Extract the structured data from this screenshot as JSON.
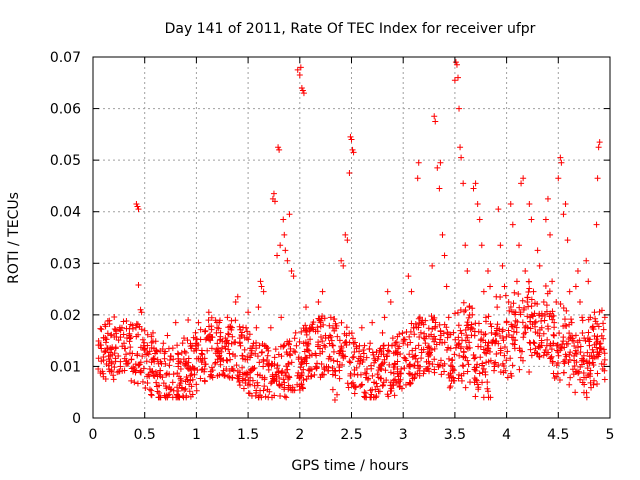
{
  "chart_data": {
    "type": "scatter",
    "title": "Day 141 of 2011, Rate Of TEC Index for receiver ufpr",
    "xlabel": "GPS time / hours",
    "ylabel": "ROTI / TECUs",
    "xlim": [
      0,
      5
    ],
    "ylim": [
      0,
      0.07
    ],
    "x_ticks": [
      "0",
      "0.5",
      "1",
      "1.5",
      "2",
      "2.5",
      "3",
      "3.5",
      "4",
      "4.5",
      "5"
    ],
    "y_ticks": [
      "0",
      "0.01",
      "0.02",
      "0.03",
      "0.04",
      "0.05",
      "0.06",
      "0.07"
    ],
    "grid": true,
    "marker": "plus",
    "color": "#ff0000",
    "series": [
      {
        "name": "ROTI",
        "points": [
          [
            0.05,
            0.0095
          ],
          [
            0.08,
            0.011
          ],
          [
            0.1,
            0.008
          ],
          [
            0.12,
            0.013
          ],
          [
            0.15,
            0.012
          ],
          [
            0.18,
            0.0105
          ],
          [
            0.2,
            0.0075
          ],
          [
            0.22,
            0.0135
          ],
          [
            0.25,
            0.009
          ],
          [
            0.28,
            0.0175
          ],
          [
            0.3,
            0.0145
          ],
          [
            0.32,
            0.011
          ],
          [
            0.35,
            0.016
          ],
          [
            0.38,
            0.0125
          ],
          [
            0.4,
            0.0095
          ],
          [
            0.42,
            0.0415
          ],
          [
            0.43,
            0.041
          ],
          [
            0.44,
            0.0405
          ],
          [
            0.44,
            0.0258
          ],
          [
            0.46,
            0.021
          ],
          [
            0.47,
            0.0205
          ],
          [
            0.5,
            0.0135
          ],
          [
            0.52,
            0.011
          ],
          [
            0.55,
            0.0095
          ],
          [
            0.58,
            0.0165
          ],
          [
            0.6,
            0.0125
          ],
          [
            0.62,
            0.0085
          ],
          [
            0.65,
            0.013
          ],
          [
            0.68,
            0.0145
          ],
          [
            0.7,
            0.0105
          ],
          [
            0.72,
            0.016
          ],
          [
            0.75,
            0.012
          ],
          [
            0.78,
            0.0085
          ],
          [
            0.8,
            0.0185
          ],
          [
            0.82,
            0.0125
          ],
          [
            0.85,
            0.0095
          ],
          [
            0.88,
            0.0155
          ],
          [
            0.9,
            0.011
          ],
          [
            0.92,
            0.019
          ],
          [
            0.95,
            0.0135
          ],
          [
            0.98,
            0.0095
          ],
          [
            1.0,
            0.0145
          ],
          [
            1.02,
            0.0185
          ],
          [
            1.05,
            0.0125
          ],
          [
            1.08,
            0.0095
          ],
          [
            1.1,
            0.0155
          ],
          [
            1.12,
            0.0205
          ],
          [
            1.15,
            0.0135
          ],
          [
            1.18,
            0.0105
          ],
          [
            1.2,
            0.0175
          ],
          [
            1.22,
            0.0125
          ],
          [
            1.25,
            0.0085
          ],
          [
            1.28,
            0.0155
          ],
          [
            1.3,
            0.0195
          ],
          [
            1.32,
            0.0125
          ],
          [
            1.35,
            0.0095
          ],
          [
            1.38,
            0.0225
          ],
          [
            1.4,
            0.0235
          ],
          [
            1.42,
            0.0145
          ],
          [
            1.45,
            0.0115
          ],
          [
            1.48,
            0.0175
          ],
          [
            1.5,
            0.0205
          ],
          [
            1.52,
            0.0135
          ],
          [
            1.55,
            0.0095
          ],
          [
            1.58,
            0.0175
          ],
          [
            1.6,
            0.0215
          ],
          [
            1.62,
            0.0265
          ],
          [
            1.63,
            0.0255
          ],
          [
            1.65,
            0.0245
          ],
          [
            1.68,
            0.0135
          ],
          [
            1.7,
            0.0105
          ],
          [
            1.72,
            0.0175
          ],
          [
            1.74,
            0.0425
          ],
          [
            1.75,
            0.0435
          ],
          [
            1.76,
            0.042
          ],
          [
            1.78,
            0.0315
          ],
          [
            1.79,
            0.0525
          ],
          [
            1.8,
            0.052
          ],
          [
            1.81,
            0.0335
          ],
          [
            1.82,
            0.0195
          ],
          [
            1.84,
            0.0385
          ],
          [
            1.85,
            0.0355
          ],
          [
            1.86,
            0.0325
          ],
          [
            1.88,
            0.0305
          ],
          [
            1.9,
            0.0395
          ],
          [
            1.92,
            0.0285
          ],
          [
            1.94,
            0.0275
          ],
          [
            1.96,
            0.0165
          ],
          [
            1.98,
            0.0675
          ],
          [
            2.0,
            0.0665
          ],
          [
            2.01,
            0.068
          ],
          [
            2.02,
            0.064
          ],
          [
            2.03,
            0.0635
          ],
          [
            2.04,
            0.063
          ],
          [
            2.06,
            0.0215
          ],
          [
            2.08,
            0.0145
          ],
          [
            2.1,
            0.0095
          ],
          [
            2.12,
            0.0175
          ],
          [
            2.15,
            0.0125
          ],
          [
            2.18,
            0.0225
          ],
          [
            2.2,
            0.0185
          ],
          [
            2.22,
            0.0245
          ],
          [
            2.25,
            0.0155
          ],
          [
            2.28,
            0.0115
          ],
          [
            2.3,
            0.0195
          ],
          [
            2.32,
            0.0055
          ],
          [
            2.34,
            0.0035
          ],
          [
            2.36,
            0.0045
          ],
          [
            2.38,
            0.0125
          ],
          [
            2.4,
            0.0305
          ],
          [
            2.42,
            0.0295
          ],
          [
            2.44,
            0.0355
          ],
          [
            2.46,
            0.0345
          ],
          [
            2.48,
            0.0475
          ],
          [
            2.49,
            0.0545
          ],
          [
            2.5,
            0.054
          ],
          [
            2.51,
            0.052
          ],
          [
            2.52,
            0.0515
          ],
          [
            2.55,
            0.0135
          ],
          [
            2.58,
            0.0105
          ],
          [
            2.6,
            0.0175
          ],
          [
            2.62,
            0.0125
          ],
          [
            2.65,
            0.0095
          ],
          [
            2.68,
            0.0145
          ],
          [
            2.7,
            0.0185
          ],
          [
            2.72,
            0.0115
          ],
          [
            2.75,
            0.0085
          ],
          [
            2.78,
            0.0135
          ],
          [
            2.8,
            0.0165
          ],
          [
            2.82,
            0.0195
          ],
          [
            2.85,
            0.0245
          ],
          [
            2.88,
            0.0225
          ],
          [
            2.9,
            0.0155
          ],
          [
            2.92,
            0.0105
          ],
          [
            2.95,
            0.0135
          ],
          [
            2.98,
            0.0095
          ],
          [
            3.0,
            0.0145
          ],
          [
            3.02,
            0.0115
          ],
          [
            3.05,
            0.0275
          ],
          [
            3.08,
            0.0245
          ],
          [
            3.1,
            0.0175
          ],
          [
            3.12,
            0.0135
          ],
          [
            3.14,
            0.0465
          ],
          [
            3.15,
            0.0495
          ],
          [
            3.18,
            0.0185
          ],
          [
            3.2,
            0.0155
          ],
          [
            3.22,
            0.0095
          ],
          [
            3.25,
            0.0125
          ],
          [
            3.28,
            0.0295
          ],
          [
            3.3,
            0.0585
          ],
          [
            3.31,
            0.0575
          ],
          [
            3.33,
            0.0485
          ],
          [
            3.35,
            0.0445
          ],
          [
            3.36,
            0.0495
          ],
          [
            3.38,
            0.0355
          ],
          [
            3.4,
            0.0315
          ],
          [
            3.42,
            0.0255
          ],
          [
            3.44,
            0.0195
          ],
          [
            3.46,
            0.0135
          ],
          [
            3.48,
            0.0095
          ],
          [
            3.5,
            0.0655
          ],
          [
            3.51,
            0.069
          ],
          [
            3.52,
            0.0685
          ],
          [
            3.53,
            0.066
          ],
          [
            3.54,
            0.06
          ],
          [
            3.55,
            0.0525
          ],
          [
            3.56,
            0.0505
          ],
          [
            3.58,
            0.0455
          ],
          [
            3.6,
            0.0335
          ],
          [
            3.62,
            0.0285
          ],
          [
            3.64,
            0.0215
          ],
          [
            3.66,
            0.0175
          ],
          [
            3.68,
            0.0445
          ],
          [
            3.7,
            0.0455
          ],
          [
            3.72,
            0.0415
          ],
          [
            3.74,
            0.0385
          ],
          [
            3.76,
            0.0335
          ],
          [
            3.78,
            0.0245
          ],
          [
            3.8,
            0.0195
          ],
          [
            3.82,
            0.0285
          ],
          [
            3.84,
            0.0255
          ],
          [
            3.86,
            0.0145
          ],
          [
            3.88,
            0.0105
          ],
          [
            3.9,
            0.0235
          ],
          [
            3.92,
            0.0405
          ],
          [
            3.94,
            0.0335
          ],
          [
            3.96,
            0.0295
          ],
          [
            3.98,
            0.0255
          ],
          [
            4.0,
            0.0185
          ],
          [
            4.02,
            0.0225
          ],
          [
            4.04,
            0.0415
          ],
          [
            4.06,
            0.0375
          ],
          [
            4.08,
            0.0135
          ],
          [
            4.1,
            0.0265
          ],
          [
            4.12,
            0.0335
          ],
          [
            4.14,
            0.0455
          ],
          [
            4.16,
            0.0465
          ],
          [
            4.18,
            0.0285
          ],
          [
            4.2,
            0.0225
          ],
          [
            4.22,
            0.0415
          ],
          [
            4.24,
            0.0385
          ],
          [
            4.26,
            0.0245
          ],
          [
            4.28,
            0.0135
          ],
          [
            4.3,
            0.0325
          ],
          [
            4.32,
            0.0295
          ],
          [
            4.34,
            0.0175
          ],
          [
            4.36,
            0.0225
          ],
          [
            4.38,
            0.0385
          ],
          [
            4.4,
            0.0425
          ],
          [
            4.42,
            0.0355
          ],
          [
            4.44,
            0.0265
          ],
          [
            4.46,
            0.0185
          ],
          [
            4.48,
            0.0225
          ],
          [
            4.5,
            0.0465
          ],
          [
            4.52,
            0.0505
          ],
          [
            4.53,
            0.0495
          ],
          [
            4.55,
            0.0395
          ],
          [
            4.57,
            0.0415
          ],
          [
            4.59,
            0.0345
          ],
          [
            4.61,
            0.0245
          ],
          [
            4.63,
            0.0185
          ],
          [
            4.65,
            0.0085
          ],
          [
            4.67,
            0.0255
          ],
          [
            4.69,
            0.0285
          ],
          [
            4.71,
            0.0225
          ],
          [
            4.73,
            0.0195
          ],
          [
            4.75,
            0.0155
          ],
          [
            4.77,
            0.0305
          ],
          [
            4.79,
            0.0265
          ],
          [
            4.81,
            0.0195
          ],
          [
            4.83,
            0.0175
          ],
          [
            4.85,
            0.0205
          ],
          [
            4.87,
            0.0375
          ],
          [
            4.88,
            0.0465
          ],
          [
            4.89,
            0.0525
          ],
          [
            4.9,
            0.0535
          ],
          [
            4.91,
            0.0145
          ],
          [
            4.92,
            0.0105
          ],
          [
            4.93,
            0.0095
          ],
          [
            4.95,
            0.0195
          ]
        ]
      }
    ]
  }
}
